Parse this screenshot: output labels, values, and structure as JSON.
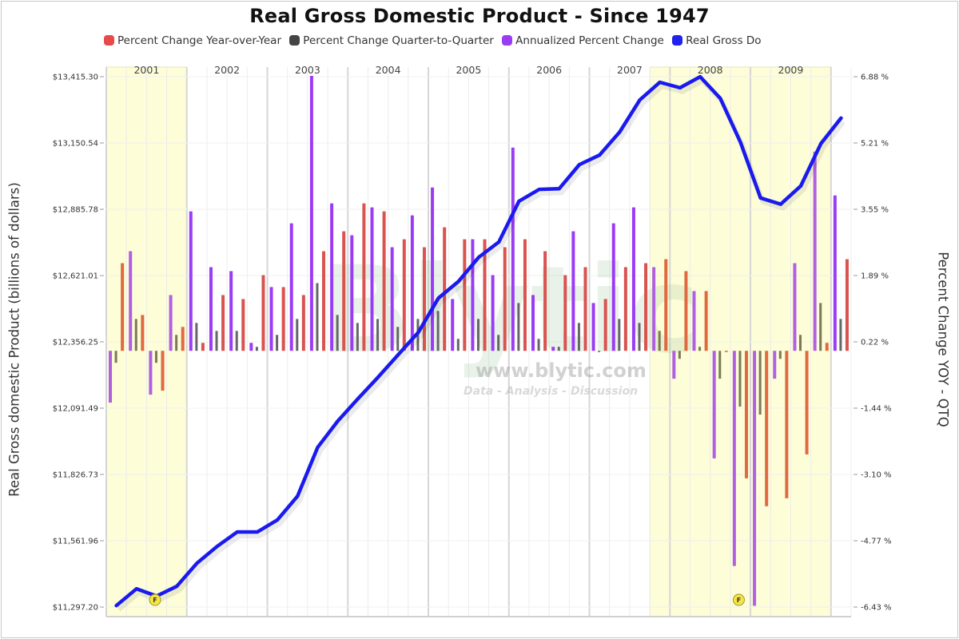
{
  "chart_data": {
    "type": "bar",
    "title": "Real Gross Domestic Product - Since 1947",
    "ylabel": "Real Gross domestic Product (billions of dollars)",
    "y2label": "Percent Change YOY - QTQ",
    "xlabel": "",
    "ylim": [
      11297.2,
      13415.3
    ],
    "y2lim": [
      -6.43,
      6.88
    ],
    "y_ticks": [
      "$11,297.20",
      "$11,561.96",
      "$11,826.73",
      "$12,091.49",
      "$12,356.25",
      "$12,621.01",
      "$12,885.78",
      "$13,150.54",
      "$13,415.30"
    ],
    "y2_ticks": [
      "-6.43 %",
      "-4.77 %",
      "-3.10 %",
      "-1.44 %",
      "0.22 %",
      "1.89 %",
      "3.55 %",
      "5.21 %",
      "6.88 %"
    ],
    "year_labels": [
      "2001",
      "2002",
      "2003",
      "2004",
      "2005",
      "2006",
      "2007",
      "2008",
      "2009"
    ],
    "recession_bands": [
      [
        "2001Q1",
        "2001Q4"
      ],
      [
        "2007Q4",
        "2009Q4"
      ]
    ],
    "grid": true,
    "legend_position": "top",
    "legend": [
      {
        "name": "Percent Change Year-over-Year",
        "color": "#e84a4a"
      },
      {
        "name": "Percent Change Quarter-to-Quarter",
        "color": "#444444"
      },
      {
        "name": "Annualized Percent Change",
        "color": "#9b3cf5"
      },
      {
        "name": "Real Gross Domestic Product",
        "color": "#2222ee"
      }
    ],
    "legend_display_text": "Real Gross Do",
    "watermark": {
      "logo": "Blytic",
      "url": "www.blytic.com",
      "tagline": "Data - Analysis - Discussion"
    },
    "annotation_flags": [
      {
        "quarter": "2001Q3",
        "label": "F"
      },
      {
        "quarter": "2008Q4",
        "label": "F"
      }
    ],
    "quarters": [
      "2001Q1",
      "2001Q2",
      "2001Q3",
      "2001Q4",
      "2002Q1",
      "2002Q2",
      "2002Q3",
      "2002Q4",
      "2003Q1",
      "2003Q2",
      "2003Q3",
      "2003Q4",
      "2004Q1",
      "2004Q2",
      "2004Q3",
      "2004Q4",
      "2005Q1",
      "2005Q2",
      "2005Q3",
      "2005Q4",
      "2006Q1",
      "2006Q2",
      "2006Q3",
      "2006Q4",
      "2007Q1",
      "2007Q2",
      "2007Q3",
      "2007Q4",
      "2008Q1",
      "2008Q2",
      "2008Q3",
      "2008Q4",
      "2009Q1",
      "2009Q2",
      "2009Q3",
      "2009Q4",
      "2010Q1"
    ],
    "series": [
      {
        "name": "Percent Change Year-over-Year",
        "axis": "right",
        "values": [
          2.2,
          0.9,
          -1.0,
          0.6,
          0.2,
          1.4,
          1.3,
          1.9,
          1.6,
          1.4,
          2.5,
          3.0,
          3.7,
          3.5,
          2.8,
          2.6,
          3.1,
          2.8,
          2.8,
          2.6,
          2.8,
          2.5,
          1.9,
          2.1,
          1.3,
          2.1,
          2.2,
          2.3,
          2.0,
          1.5,
          0.0,
          -3.2,
          -3.9,
          -3.7,
          -2.6,
          0.2,
          2.3
        ]
      },
      {
        "name": "Percent Change Quarter-to-Quarter",
        "axis": "right",
        "values": [
          -0.3,
          0.8,
          -0.3,
          0.4,
          0.7,
          0.5,
          0.5,
          0.1,
          0.4,
          0.8,
          1.7,
          0.9,
          0.7,
          0.8,
          0.6,
          0.8,
          1.0,
          0.3,
          0.8,
          0.4,
          1.2,
          0.3,
          0.1,
          0.7,
          0.0,
          0.8,
          0.7,
          0.5,
          -0.2,
          0.1,
          -0.7,
          -1.4,
          -1.6,
          -0.2,
          0.4,
          1.2,
          0.8
        ]
      },
      {
        "name": "Annualized Percent Change",
        "axis": "right",
        "values": [
          -1.3,
          2.5,
          -1.1,
          1.4,
          3.5,
          2.1,
          2.0,
          0.2,
          1.6,
          3.2,
          6.9,
          3.7,
          2.9,
          3.6,
          2.6,
          3.4,
          4.1,
          1.3,
          2.8,
          1.9,
          5.1,
          1.4,
          0.1,
          3.0,
          1.2,
          3.2,
          3.6,
          2.1,
          -0.7,
          1.5,
          -2.7,
          -5.4,
          -6.4,
          -0.7,
          2.2,
          5.0,
          3.9
        ]
      },
      {
        "name": "Real Gross Domestic Product",
        "axis": "left",
        "type": "line",
        "values": [
          11303,
          11370,
          11341,
          11380,
          11472,
          11539,
          11597,
          11597,
          11645,
          11740,
          11935,
          12040,
          12129,
          12215,
          12305,
          12394,
          12531,
          12598,
          12694,
          12755,
          12918,
          12965,
          12968,
          13064,
          13102,
          13194,
          13322,
          13393,
          13371,
          13415,
          13329,
          13154,
          12931,
          12906,
          12979,
          13148,
          13250
        ]
      }
    ]
  }
}
